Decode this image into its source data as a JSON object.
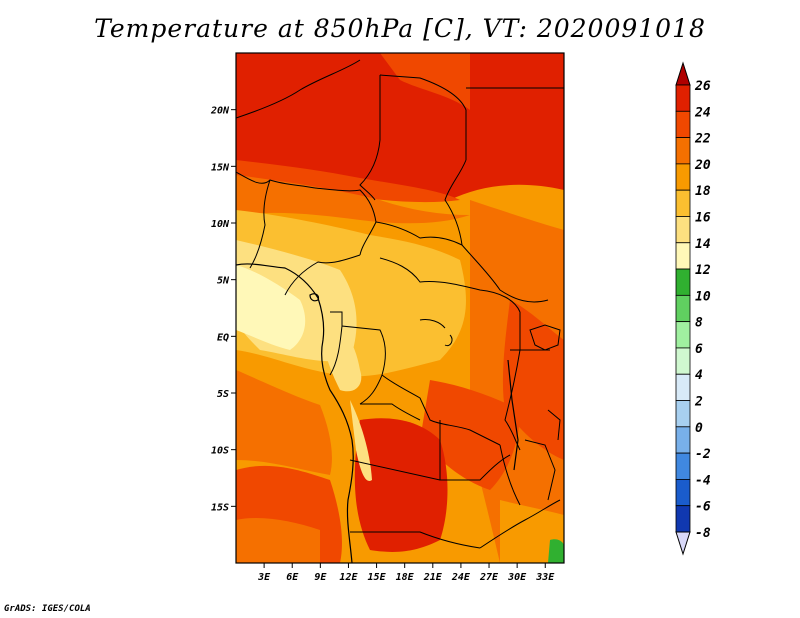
{
  "title": "Temperature at 850hPa [C], VT: 2020091018",
  "credit": "GrADS: IGES/COLA",
  "map": {
    "lat_labels": [
      {
        "text": "20N",
        "lat": 20
      },
      {
        "text": "15N",
        "lat": 15
      },
      {
        "text": "10N",
        "lat": 10
      },
      {
        "text": "5N",
        "lat": 5
      },
      {
        "text": "EQ",
        "lat": 0
      },
      {
        "text": "5S",
        "lat": -5
      },
      {
        "text": "10S",
        "lat": -10
      },
      {
        "text": "15S",
        "lat": -15
      }
    ],
    "lon_labels": [
      {
        "text": "3E",
        "lon": 3
      },
      {
        "text": "6E",
        "lon": 6
      },
      {
        "text": "9E",
        "lon": 9
      },
      {
        "text": "12E",
        "lon": 12
      },
      {
        "text": "15E",
        "lon": 15
      },
      {
        "text": "18E",
        "lon": 18
      },
      {
        "text": "21E",
        "lon": 21
      },
      {
        "text": "24E",
        "lon": 24
      },
      {
        "text": "27E",
        "lon": 27
      },
      {
        "text": "30E",
        "lon": 30
      },
      {
        "text": "33E",
        "lon": 33
      }
    ],
    "lon_range": [
      0,
      35
    ],
    "lat_range": [
      -20,
      25
    ]
  },
  "colorbar": {
    "levels": [
      "26",
      "24",
      "22",
      "20",
      "18",
      "16",
      "14",
      "12",
      "10",
      "8",
      "6",
      "4",
      "2",
      "0",
      "-2",
      "-4",
      "-6",
      "-8"
    ],
    "colors": [
      "#b00000",
      "#e02000",
      "#f04800",
      "#f57000",
      "#f89a00",
      "#fbbf30",
      "#fde080",
      "#fff8b8",
      "#30b030",
      "#60d060",
      "#a0f0a0",
      "#d0f8d0",
      "#d8eaf8",
      "#a8d0f0",
      "#78b0ea",
      "#4088e0",
      "#1a5ccc",
      "#1038b0",
      "#0a208a",
      "#060060",
      "#d8d8f8"
    ]
  }
}
